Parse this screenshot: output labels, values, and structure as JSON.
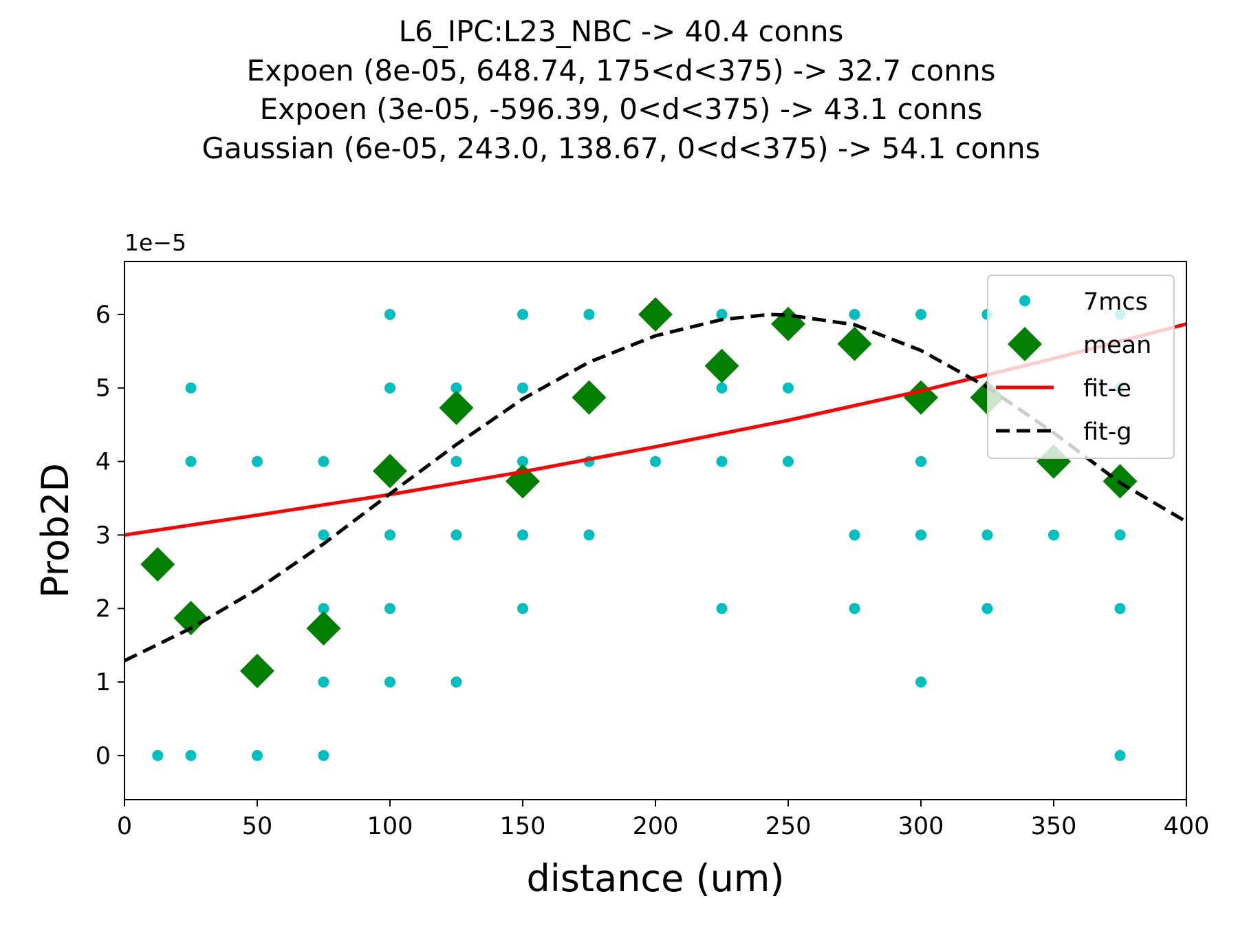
{
  "chart_data": {
    "type": "scatter",
    "title_lines": [
      "L6_IPC:L23_NBC -> 40.4 conns",
      "Expoen (8e-05, 648.74, 175<d<375) -> 32.7 conns",
      "Expoen (3e-05, -596.39, 0<d<375) -> 43.1 conns",
      "Gaussian (6e-05, 243.0, 138.67, 0<d<375) -> 54.1 conns"
    ],
    "xlabel": "distance (um)",
    "ylabel": "Prob2D",
    "y_offset_label": "1e−5",
    "xlim": [
      0,
      400
    ],
    "ylim": [
      -0.6,
      6.72
    ],
    "xticks": [
      0,
      50,
      100,
      150,
      200,
      250,
      300,
      350,
      400
    ],
    "yticks": [
      0,
      1,
      2,
      3,
      4,
      5,
      6
    ],
    "grid": false,
    "legend_position": "top-right",
    "legend": [
      "7mcs",
      "mean",
      "fit-e",
      "fit-g"
    ],
    "colors": {
      "samples": "#00bfbf",
      "mean": "#007f00",
      "fit_e": "#ff0000",
      "fit_g": "#000000"
    },
    "series": [
      {
        "name": "7mcs",
        "kind": "points",
        "points": [
          [
            12.5,
            0
          ],
          [
            25,
            0
          ],
          [
            50,
            0
          ],
          [
            75,
            0
          ],
          [
            375,
            0
          ],
          [
            75,
            1
          ],
          [
            100,
            1
          ],
          [
            125,
            1
          ],
          [
            300,
            1
          ],
          [
            75,
            2
          ],
          [
            100,
            2
          ],
          [
            150,
            2
          ],
          [
            225,
            2
          ],
          [
            275,
            2
          ],
          [
            325,
            2
          ],
          [
            375,
            2
          ],
          [
            75,
            3
          ],
          [
            100,
            3
          ],
          [
            125,
            3
          ],
          [
            150,
            3
          ],
          [
            175,
            3
          ],
          [
            275,
            3
          ],
          [
            300,
            3
          ],
          [
            325,
            3
          ],
          [
            350,
            3
          ],
          [
            375,
            3
          ],
          [
            25,
            4
          ],
          [
            50,
            4
          ],
          [
            75,
            4
          ],
          [
            125,
            4
          ],
          [
            150,
            4
          ],
          [
            175,
            4
          ],
          [
            200,
            4
          ],
          [
            225,
            4
          ],
          [
            250,
            4
          ],
          [
            300,
            4
          ],
          [
            25,
            5
          ],
          [
            100,
            5
          ],
          [
            125,
            5
          ],
          [
            150,
            5
          ],
          [
            225,
            5
          ],
          [
            250,
            5
          ],
          [
            375,
            5
          ],
          [
            100,
            6
          ],
          [
            150,
            6
          ],
          [
            175,
            6
          ],
          [
            225,
            6
          ],
          [
            275,
            6
          ],
          [
            300,
            6
          ],
          [
            325,
            6
          ],
          [
            375,
            6
          ]
        ]
      },
      {
        "name": "mean",
        "kind": "diamonds",
        "points": [
          [
            12.5,
            2.6
          ],
          [
            25,
            1.87
          ],
          [
            50,
            1.15
          ],
          [
            75,
            1.73
          ],
          [
            100,
            3.87
          ],
          [
            125,
            4.73
          ],
          [
            150,
            3.73
          ],
          [
            175,
            4.87
          ],
          [
            200,
            6.0
          ],
          [
            225,
            5.3
          ],
          [
            250,
            5.87
          ],
          [
            275,
            5.6
          ],
          [
            300,
            4.87
          ],
          [
            325,
            4.87
          ],
          [
            350,
            4.0
          ],
          [
            375,
            3.73
          ]
        ]
      },
      {
        "name": "fit-e",
        "kind": "line",
        "x": [
          0,
          50,
          100,
          150,
          200,
          250,
          300,
          350,
          400
        ],
        "y": [
          3.0,
          3.27,
          3.55,
          3.86,
          4.2,
          4.56,
          4.96,
          5.4,
          5.87
        ]
      },
      {
        "name": "fit-g",
        "kind": "dashed",
        "x": [
          0,
          25,
          50,
          75,
          100,
          125,
          150,
          175,
          200,
          225,
          243,
          250,
          275,
          300,
          325,
          350,
          375,
          400
        ],
        "y": [
          1.29,
          1.73,
          2.26,
          2.88,
          3.56,
          4.23,
          4.85,
          5.35,
          5.71,
          5.93,
          6.0,
          5.99,
          5.86,
          5.51,
          5.01,
          4.39,
          3.71,
          3.18
        ]
      }
    ]
  }
}
